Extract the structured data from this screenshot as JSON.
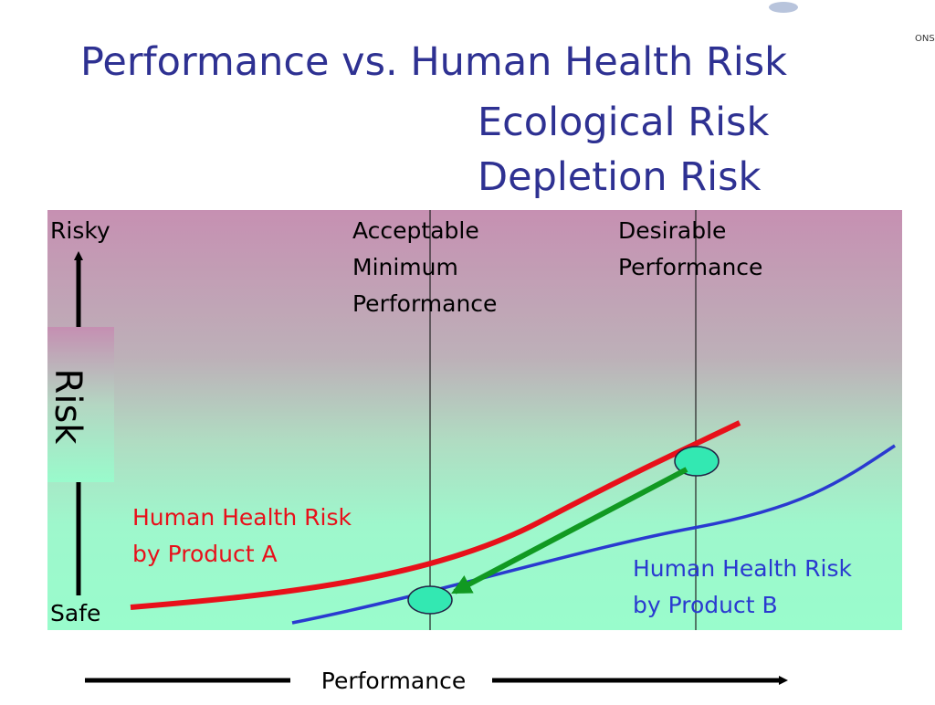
{
  "header": {
    "title": "Performance vs. Human Health Risk",
    "subtitles": [
      "Ecological Risk",
      "Depletion Risk"
    ],
    "logo_text": "ONS"
  },
  "diagram": {
    "risky": "Risky",
    "safe": "Safe",
    "risk_axis": "Risk",
    "performance_axis": "Performance",
    "acceptable": [
      "Acceptable",
      "Minimum",
      "Performance"
    ],
    "desirable": [
      "Desirable",
      "Performance"
    ],
    "product_a": [
      "Human Health Risk",
      "by Product A"
    ],
    "product_b": [
      "Human Health Risk",
      "by Product B"
    ]
  }
}
